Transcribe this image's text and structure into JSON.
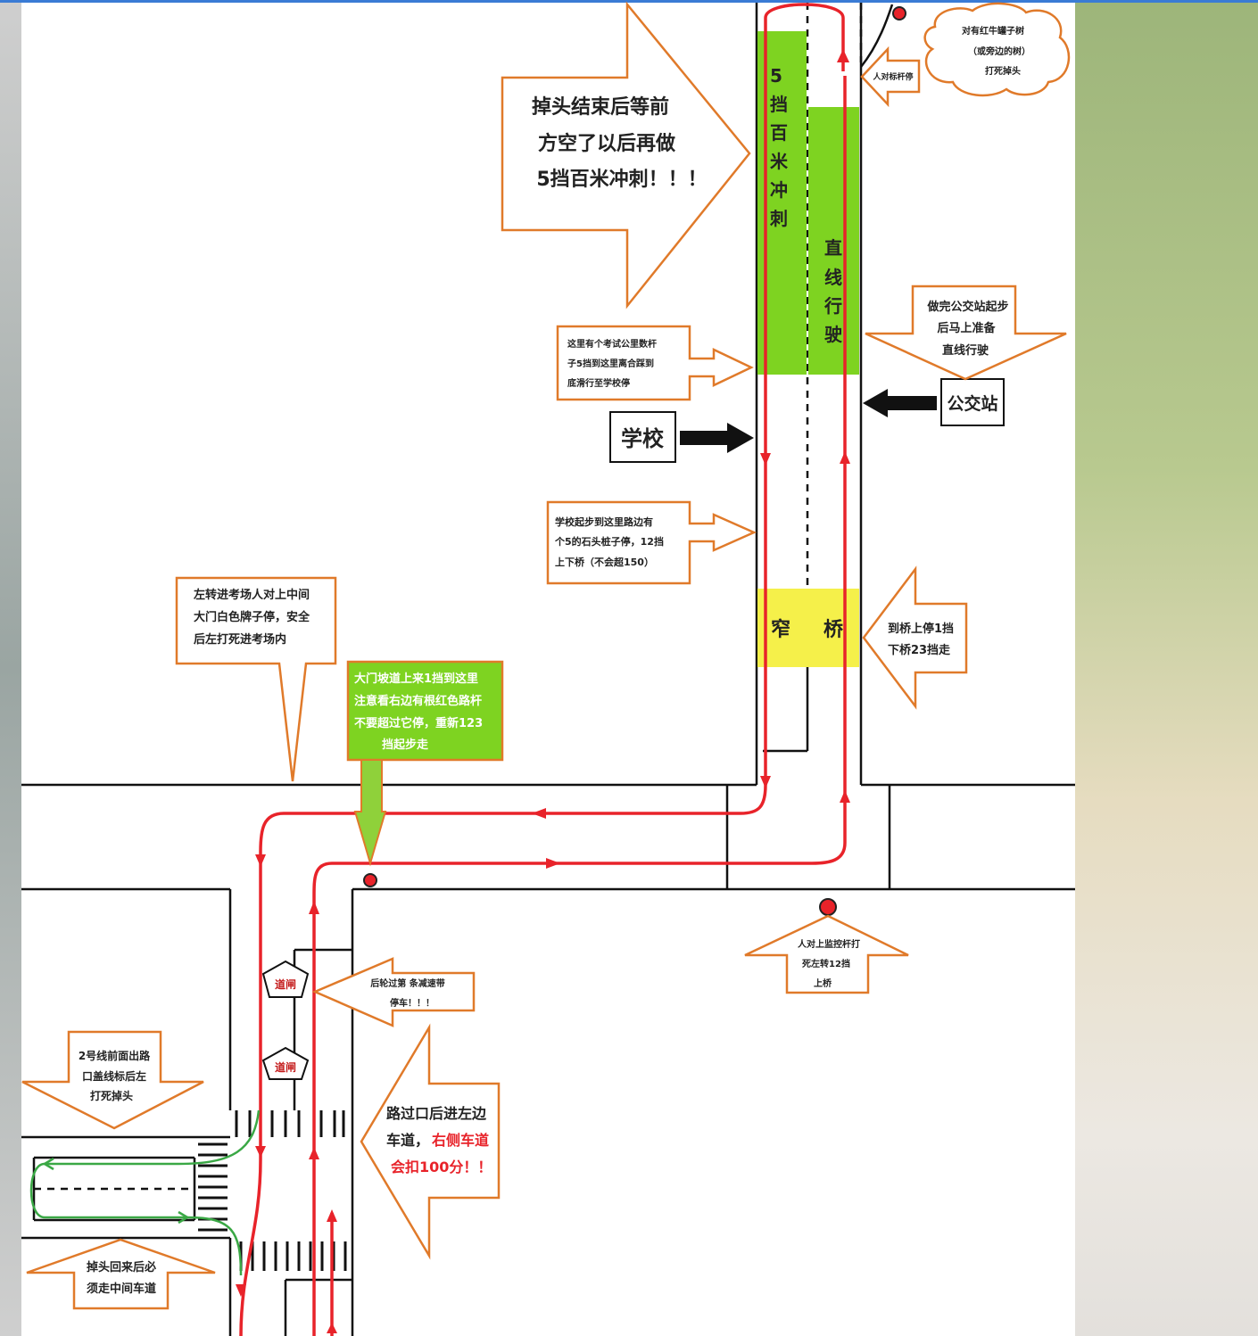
{
  "callouts": {
    "uturn_wait": [
      "掉头结束后等前",
      "方空了以后再做",
      "5挡百米冲刺！！！"
    ],
    "red_tree": [
      "对有红牛罐子树",
      "（或旁边的树）",
      "打死掉头"
    ],
    "person_pole": "人对标杆停",
    "bus_start": [
      "做完公交站起步",
      "后马上准备",
      "直线行驶"
    ],
    "km_sign": [
      "这里有个考试公里数杆",
      "子5挡到这里离合踩到",
      "底滑行至学校停"
    ],
    "stone_pile": [
      "学校起步到这里路边有",
      "个5的石头桩子停，12挡",
      "上下桥（不会超150）"
    ],
    "bridge_gear": [
      "到桥上停1挡",
      "下桥23挡走"
    ],
    "left_turn_gate": [
      "左转进考场人对上中间",
      "大门白色牌子停，安全",
      "后左打死进考场内"
    ],
    "gate_slope": [
      "大门坡道上来1挡到这里",
      "注意看右边有根红色路杆",
      "不要超过它停，重新123",
      "挡起步走"
    ],
    "monitor_pole": [
      "人对上监控杆打",
      "死左转12挡",
      "上桥"
    ],
    "speed_bump": [
      "后轮过第   条减速带",
      "停车！！！"
    ],
    "line2": [
      "2号线前面出路",
      "口盖线标后左",
      "打死掉头"
    ],
    "lane_left_a": "路过口后进左边",
    "lane_left_b": "车道，",
    "lane_right_warn": "右侧车道",
    "lane_penalty": "会扣100分！！",
    "uturn_middle": [
      "掉头回来后必",
      "须走中间车道"
    ]
  },
  "labels": {
    "school": "学校",
    "bus_stop": "公交站",
    "sprint": [
      "5",
      "挡",
      "百",
      "米",
      "冲",
      "刺"
    ],
    "straight": [
      "直",
      "线",
      "行",
      "驶"
    ],
    "narrow": "窄",
    "bridge": "桥",
    "gate1": "道闸",
    "gate2": "道闸"
  },
  "colors": {
    "route": "#e8232a",
    "callout_border": "#e07a2a",
    "green_zone": "#7ed321",
    "yellow_zone": "#f5f04a",
    "green_route": "#3aa845"
  }
}
